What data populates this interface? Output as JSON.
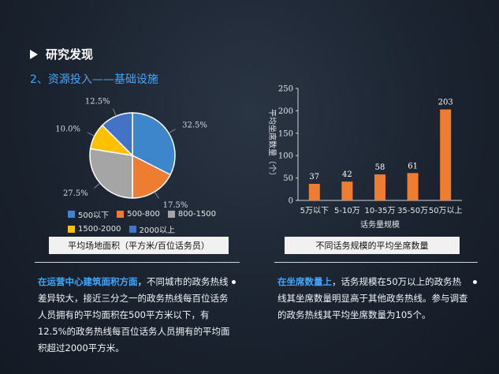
{
  "header": {
    "title": "研究发现",
    "subtitle": "2、资源投入——基础设施"
  },
  "colors": {
    "accent": "#3ea8ff",
    "blue": "#3d86cc",
    "orange": "#ee7d31",
    "gray": "#a5a5a5",
    "yellow": "#ffc000",
    "darkblue": "#4472c4"
  },
  "chart_data": [
    {
      "type": "pie",
      "title": "平均场地面积（平方米/百位话务员）",
      "categories": [
        "500以下",
        "500-800",
        "800-1500",
        "1500-2000",
        "2000以上"
      ],
      "values": [
        32.5,
        17.5,
        27.5,
        10.0,
        12.5
      ],
      "value_labels": [
        "32.5%",
        "17.5%",
        "27.5%",
        "10.0%",
        "12.5%"
      ],
      "legend_position": "bottom"
    },
    {
      "type": "bar",
      "title": "不同话务规模的平均坐席数量",
      "categories": [
        "5万以下",
        "5-10万",
        "10-35万",
        "35-50万",
        "50万以上"
      ],
      "values": [
        37,
        42,
        58,
        61,
        203
      ],
      "xlabel": "话务量规模",
      "ylabel": "平均坐席数量（个）",
      "ylim": [
        0,
        250
      ],
      "yticks": [
        0,
        50,
        100,
        150,
        200,
        250
      ],
      "grid": false
    }
  ],
  "notes": {
    "left_highlight": "在运营中心建筑面积方面",
    "left_text": "，不同城市的政务热线差异较大，接近三分之一的政务热线每百位话务人员拥有的平均面积在500平方米以下，有12.5%的政务热线每百位话务人员拥有的平均面积超过2000平方米。",
    "right_highlight": "在坐席数量上",
    "right_text": "，话务规模在50万以上的政务热线其坐席数量明显高于其他政务热线。参与调查的政务热线其平均坐席数量为105个。"
  }
}
